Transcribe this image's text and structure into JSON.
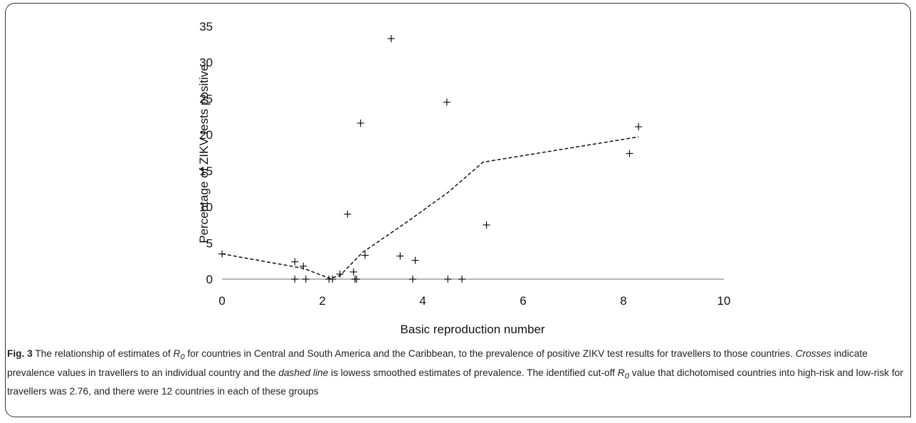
{
  "chart_data": {
    "type": "scatter",
    "xlabel": "Basic reproduction number",
    "ylabel": "Percentage of ZIKV tests positive",
    "xlim": [
      0,
      10
    ],
    "ylim": [
      0,
      35
    ],
    "xticks": [
      0,
      2,
      4,
      6,
      8,
      10
    ],
    "yticks": [
      0,
      5,
      10,
      15,
      20,
      25,
      30,
      35
    ],
    "grid": false,
    "legend": "none",
    "series": [
      {
        "kind": "points",
        "marker": "cross",
        "points": [
          {
            "x": 0,
            "y": 3.5
          },
          {
            "x": 1.45,
            "y": 2.4
          },
          {
            "x": 1.45,
            "y": 0
          },
          {
            "x": 1.62,
            "y": 1.8
          },
          {
            "x": 1.67,
            "y": 0
          },
          {
            "x": 2.13,
            "y": 0
          },
          {
            "x": 2.2,
            "y": 0
          },
          {
            "x": 2.35,
            "y": 0.7
          },
          {
            "x": 2.5,
            "y": 9.0
          },
          {
            "x": 2.62,
            "y": 1.0
          },
          {
            "x": 2.65,
            "y": 0
          },
          {
            "x": 2.68,
            "y": 0
          },
          {
            "x": 2.76,
            "y": 21.6
          },
          {
            "x": 2.85,
            "y": 3.3
          },
          {
            "x": 3.37,
            "y": 33.3
          },
          {
            "x": 3.55,
            "y": 3.2
          },
          {
            "x": 3.8,
            "y": 0
          },
          {
            "x": 3.85,
            "y": 2.6
          },
          {
            "x": 4.48,
            "y": 24.5
          },
          {
            "x": 4.5,
            "y": 0
          },
          {
            "x": 4.78,
            "y": 0
          },
          {
            "x": 5.27,
            "y": 7.5
          },
          {
            "x": 8.12,
            "y": 17.4
          },
          {
            "x": 8.3,
            "y": 21.1
          }
        ]
      },
      {
        "kind": "line",
        "style": "dashed",
        "points": [
          {
            "x": 0,
            "y": 3.5
          },
          {
            "x": 1.62,
            "y": 1.5
          },
          {
            "x": 2.15,
            "y": 0.1
          },
          {
            "x": 2.35,
            "y": 0.5
          },
          {
            "x": 2.8,
            "y": 3.7
          },
          {
            "x": 3.7,
            "y": 8.0
          },
          {
            "x": 4.5,
            "y": 12.0
          },
          {
            "x": 5.2,
            "y": 16.2
          },
          {
            "x": 8.3,
            "y": 19.7
          }
        ]
      }
    ]
  },
  "caption": {
    "fig_label": "Fig. 3",
    "seg1": " The relationship of estimates of ",
    "r0_symbol": "R",
    "r0_sub": "0",
    "seg2": " for countries in Central and South America and the Caribbean, to the prevalence of positive ZIKV test results for travellers to those countries. ",
    "crosses_word": "Crosses",
    "seg3": " indicate prevalence values in travellers to an individual country and the ",
    "dashed_word": "dashed line",
    "seg4": " is lowess smoothed estimates of prevalence. The identified cut-off ",
    "r0_symbol_2": "R",
    "r0_sub_2": "0",
    "seg5": " value that dichotomised countries into high-risk and low-risk for travellers was 2.76, and there were 12 countries in each of these groups"
  }
}
